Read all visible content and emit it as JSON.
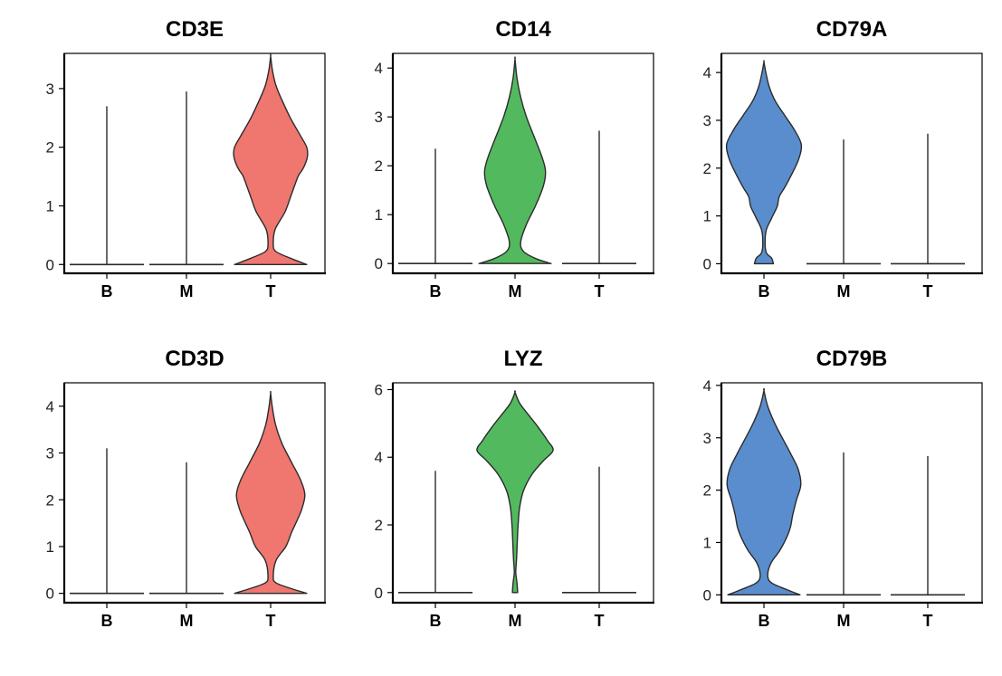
{
  "chart_data": [
    {
      "type": "violin",
      "title": "CD3E",
      "categories": [
        "B",
        "M",
        "T"
      ],
      "ylim": [
        -0.15,
        3.6
      ],
      "yticks": [
        0,
        1,
        2,
        3
      ],
      "series": [
        {
          "name": "B",
          "color": "#404040",
          "max": 2.7,
          "profile": []
        },
        {
          "name": "M",
          "color": "#404040",
          "max": 2.95,
          "profile": []
        },
        {
          "name": "T",
          "color": "#F07670",
          "max": 3.55,
          "profile": [
            [
              0.0,
              0.95
            ],
            [
              0.1,
              0.55
            ],
            [
              0.22,
              0.14
            ],
            [
              0.35,
              0.07
            ],
            [
              0.6,
              0.12
            ],
            [
              0.9,
              0.38
            ],
            [
              1.2,
              0.55
            ],
            [
              1.5,
              0.72
            ],
            [
              1.6,
              0.82
            ],
            [
              1.7,
              0.9
            ],
            [
              1.85,
              0.97
            ],
            [
              2.0,
              0.95
            ],
            [
              2.2,
              0.78
            ],
            [
              2.5,
              0.52
            ],
            [
              2.8,
              0.3
            ],
            [
              3.05,
              0.14
            ],
            [
              3.3,
              0.05
            ],
            [
              3.55,
              0.0
            ]
          ]
        }
      ]
    },
    {
      "type": "violin",
      "title": "CD14",
      "categories": [
        "B",
        "M",
        "T"
      ],
      "ylim": [
        -0.2,
        4.3
      ],
      "yticks": [
        0,
        1,
        2,
        3,
        4
      ],
      "series": [
        {
          "name": "B",
          "color": "#404040",
          "max": 2.35,
          "profile": []
        },
        {
          "name": "M",
          "color": "#52B95F",
          "max": 4.18,
          "profile": [
            [
              0.0,
              0.95
            ],
            [
              0.1,
              0.55
            ],
            [
              0.25,
              0.22
            ],
            [
              0.45,
              0.15
            ],
            [
              0.8,
              0.3
            ],
            [
              1.2,
              0.55
            ],
            [
              1.6,
              0.75
            ],
            [
              1.9,
              0.8
            ],
            [
              2.2,
              0.7
            ],
            [
              2.6,
              0.5
            ],
            [
              3.0,
              0.3
            ],
            [
              3.4,
              0.15
            ],
            [
              3.8,
              0.05
            ],
            [
              4.18,
              0.0
            ]
          ]
        },
        {
          "name": "T",
          "color": "#404040",
          "max": 2.72,
          "profile": []
        }
      ]
    },
    {
      "type": "violin",
      "title": "CD79A",
      "categories": [
        "B",
        "M",
        "T"
      ],
      "ylim": [
        -0.2,
        4.4
      ],
      "yticks": [
        0,
        1,
        2,
        3,
        4
      ],
      "series": [
        {
          "name": "B",
          "color": "#5A8DCD",
          "max": 4.22,
          "profile": [
            [
              0.0,
              0.25
            ],
            [
              0.12,
              0.2
            ],
            [
              0.22,
              0.07
            ],
            [
              0.4,
              0.03
            ],
            [
              0.7,
              0.06
            ],
            [
              0.95,
              0.2
            ],
            [
              1.2,
              0.35
            ],
            [
              1.4,
              0.4
            ],
            [
              1.6,
              0.55
            ],
            [
              1.9,
              0.75
            ],
            [
              2.2,
              0.92
            ],
            [
              2.5,
              0.98
            ],
            [
              2.8,
              0.8
            ],
            [
              3.1,
              0.55
            ],
            [
              3.4,
              0.3
            ],
            [
              3.7,
              0.14
            ],
            [
              4.0,
              0.05
            ],
            [
              4.22,
              0.0
            ]
          ]
        },
        {
          "name": "M",
          "color": "#404040",
          "max": 2.6,
          "profile": []
        },
        {
          "name": "T",
          "color": "#404040",
          "max": 2.72,
          "profile": []
        }
      ]
    },
    {
      "type": "violin",
      "title": "CD3D",
      "categories": [
        "B",
        "M",
        "T"
      ],
      "ylim": [
        -0.2,
        4.5
      ],
      "yticks": [
        0,
        1,
        2,
        3,
        4
      ],
      "series": [
        {
          "name": "B",
          "color": "#404040",
          "max": 3.1,
          "profile": []
        },
        {
          "name": "M",
          "color": "#404040",
          "max": 2.8,
          "profile": []
        },
        {
          "name": "T",
          "color": "#F07670",
          "max": 4.28,
          "profile": [
            [
              0.0,
              0.95
            ],
            [
              0.1,
              0.55
            ],
            [
              0.22,
              0.15
            ],
            [
              0.35,
              0.07
            ],
            [
              0.7,
              0.14
            ],
            [
              1.0,
              0.4
            ],
            [
              1.3,
              0.55
            ],
            [
              1.6,
              0.72
            ],
            [
              1.8,
              0.82
            ],
            [
              2.1,
              0.9
            ],
            [
              2.4,
              0.8
            ],
            [
              2.8,
              0.55
            ],
            [
              3.2,
              0.3
            ],
            [
              3.6,
              0.13
            ],
            [
              4.0,
              0.04
            ],
            [
              4.28,
              0.0
            ]
          ]
        }
      ]
    },
    {
      "type": "violin",
      "title": "LYZ",
      "categories": [
        "B",
        "M",
        "T"
      ],
      "ylim": [
        -0.3,
        6.2
      ],
      "yticks": [
        0,
        2,
        4,
        6
      ],
      "series": [
        {
          "name": "B",
          "color": "#404040",
          "max": 3.6,
          "profile": []
        },
        {
          "name": "M",
          "color": "#52B95F",
          "max": 5.92,
          "profile": [
            [
              0.0,
              0.07
            ],
            [
              0.3,
              0.05
            ],
            [
              0.6,
              0.02
            ],
            [
              1.0,
              0.04
            ],
            [
              1.5,
              0.06
            ],
            [
              2.0,
              0.08
            ],
            [
              2.5,
              0.12
            ],
            [
              3.0,
              0.22
            ],
            [
              3.5,
              0.45
            ],
            [
              3.9,
              0.75
            ],
            [
              4.2,
              1.0
            ],
            [
              4.5,
              0.85
            ],
            [
              4.9,
              0.6
            ],
            [
              5.3,
              0.32
            ],
            [
              5.6,
              0.12
            ],
            [
              5.92,
              0.0
            ]
          ]
        },
        {
          "name": "T",
          "color": "#404040",
          "max": 3.72,
          "profile": []
        }
      ]
    },
    {
      "type": "violin",
      "title": "CD79B",
      "categories": [
        "B",
        "M",
        "T"
      ],
      "ylim": [
        -0.15,
        4.05
      ],
      "yticks": [
        0,
        1,
        2,
        3,
        4
      ],
      "series": [
        {
          "name": "B",
          "color": "#5A8DCD",
          "max": 3.9,
          "profile": [
            [
              0.0,
              0.95
            ],
            [
              0.1,
              0.6
            ],
            [
              0.22,
              0.22
            ],
            [
              0.35,
              0.1
            ],
            [
              0.6,
              0.18
            ],
            [
              0.85,
              0.42
            ],
            [
              1.1,
              0.6
            ],
            [
              1.3,
              0.7
            ],
            [
              1.5,
              0.75
            ],
            [
              1.8,
              0.85
            ],
            [
              2.1,
              0.97
            ],
            [
              2.4,
              0.9
            ],
            [
              2.7,
              0.7
            ],
            [
              3.0,
              0.48
            ],
            [
              3.3,
              0.27
            ],
            [
              3.6,
              0.1
            ],
            [
              3.9,
              0.0
            ]
          ]
        },
        {
          "name": "M",
          "color": "#404040",
          "max": 2.72,
          "profile": []
        },
        {
          "name": "T",
          "color": "#404040",
          "max": 2.65,
          "profile": []
        }
      ]
    }
  ]
}
